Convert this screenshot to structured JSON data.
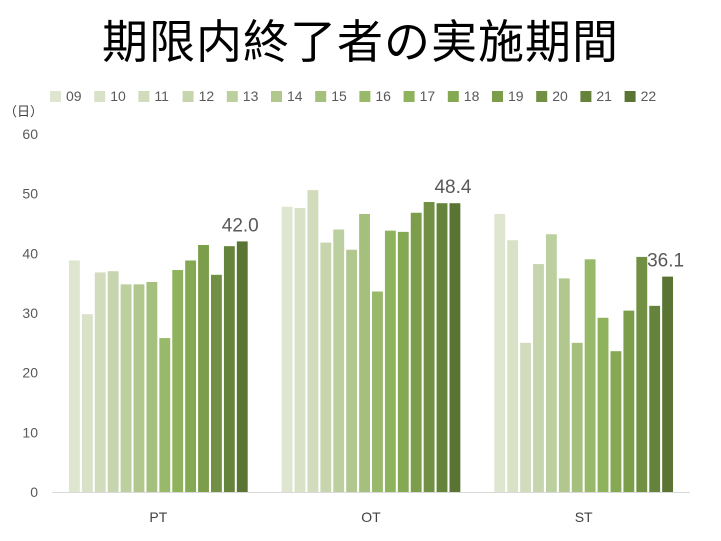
{
  "chart_data": {
    "type": "bar",
    "title": "期限内終了者の実施期間",
    "y_unit_label": "（日）",
    "categories": [
      "PT",
      "OT",
      "ST"
    ],
    "ylim": [
      0,
      60
    ],
    "yticks": [
      0,
      10,
      20,
      30,
      40,
      50,
      60
    ],
    "grid": false,
    "legend_position": "top",
    "series": [
      {
        "name": "09",
        "color": "#dfe6cf",
        "values": [
          38.8,
          47.8,
          46.6
        ]
      },
      {
        "name": "10",
        "color": "#d9e1c7",
        "values": [
          29.8,
          47.6,
          42.2
        ]
      },
      {
        "name": "11",
        "color": "#d2dcbd",
        "values": [
          36.8,
          50.6,
          25.0
        ]
      },
      {
        "name": "12",
        "color": "#c6d5ad",
        "values": [
          37.0,
          41.8,
          38.2
        ]
      },
      {
        "name": "13",
        "color": "#bccf9f",
        "values": [
          34.8,
          44.0,
          43.2
        ]
      },
      {
        "name": "14",
        "color": "#b1c78e",
        "values": [
          34.8,
          40.6,
          35.8
        ]
      },
      {
        "name": "15",
        "color": "#a5bf7c",
        "values": [
          35.2,
          46.6,
          25.0
        ]
      },
      {
        "name": "16",
        "color": "#98b86a",
        "values": [
          25.8,
          33.6,
          39.0
        ]
      },
      {
        "name": "17",
        "color": "#8fb25c",
        "values": [
          37.2,
          43.8,
          29.2
        ]
      },
      {
        "name": "18",
        "color": "#85a852",
        "values": [
          38.8,
          43.6,
          23.6
        ]
      },
      {
        "name": "19",
        "color": "#7c9e4b",
        "values": [
          41.4,
          46.8,
          30.4
        ]
      },
      {
        "name": "20",
        "color": "#719043",
        "values": [
          36.4,
          48.6,
          39.4
        ]
      },
      {
        "name": "21",
        "color": "#66833b",
        "values": [
          41.2,
          48.4,
          31.2
        ]
      },
      {
        "name": "22",
        "color": "#5a7434",
        "values": [
          42.0,
          48.4,
          36.1
        ]
      }
    ],
    "data_labels": [
      {
        "category_index": 0,
        "series_index": 13,
        "text": "42.0"
      },
      {
        "category_index": 1,
        "series_index": 13,
        "text": "48.4"
      },
      {
        "category_index": 2,
        "series_index": 13,
        "text": "36.1"
      }
    ]
  }
}
